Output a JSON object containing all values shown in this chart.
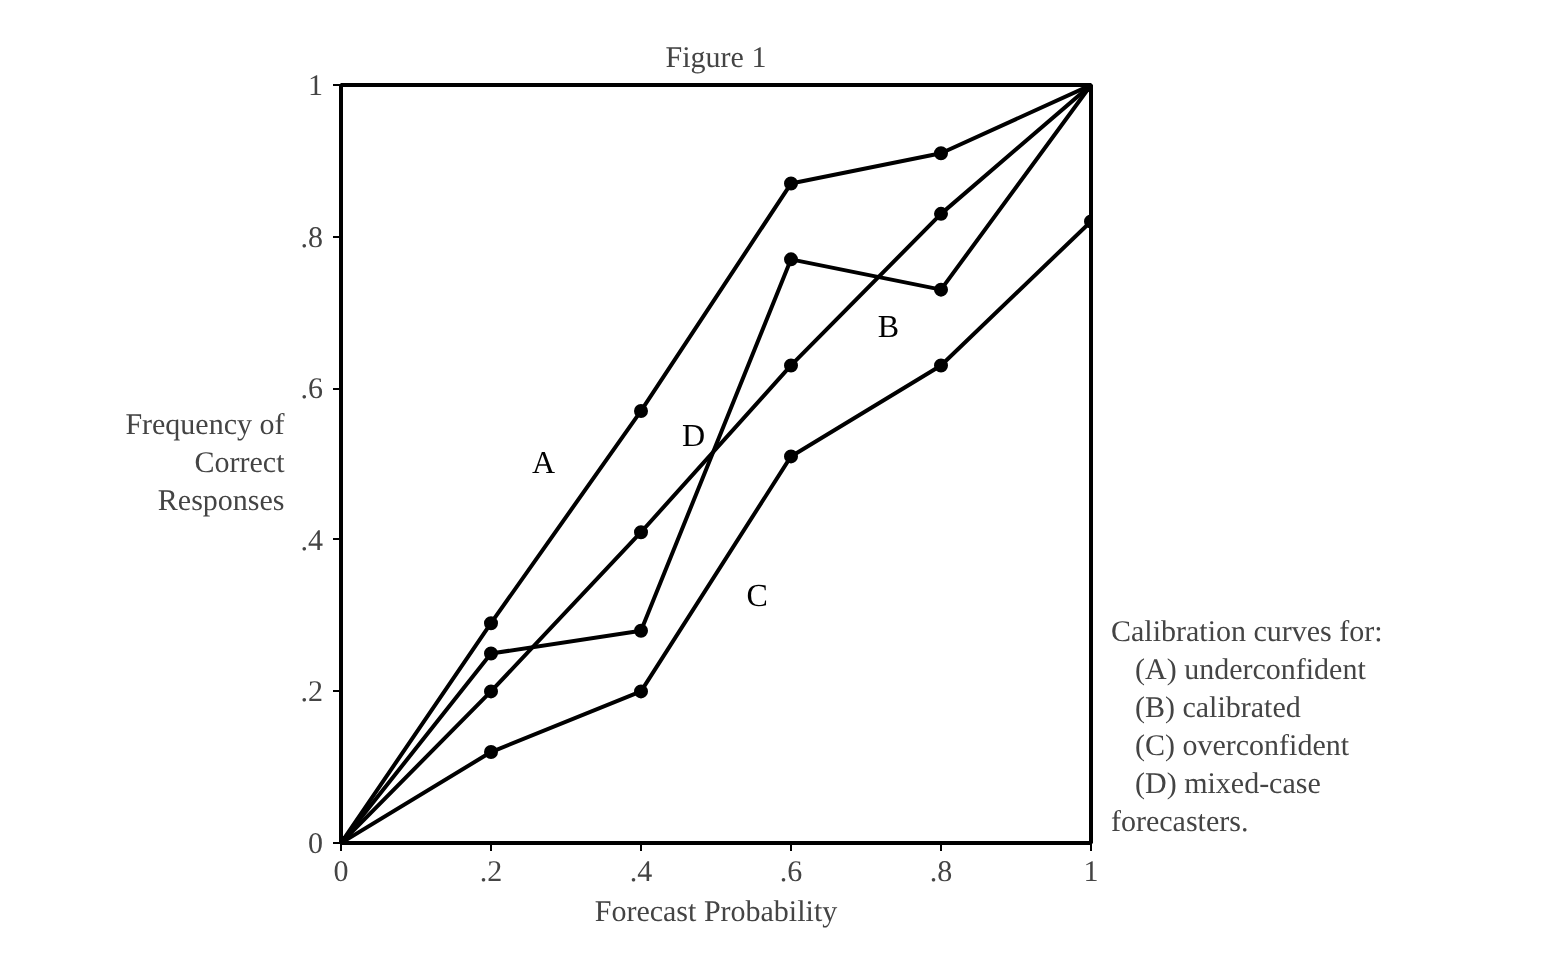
{
  "chart_data": {
    "type": "line",
    "title": "Figure 1",
    "xlabel": "Forecast Probability",
    "ylabel": "Frequency of Correct Responses",
    "x": [
      0,
      0.2,
      0.4,
      0.6,
      0.8,
      1
    ],
    "series": [
      {
        "name": "A",
        "color": "#000000",
        "values": [
          0,
          0.29,
          0.57,
          0.87,
          0.91,
          1
        ]
      },
      {
        "name": "B",
        "color": "#000000",
        "values": [
          0,
          0.2,
          0.41,
          0.63,
          0.83,
          1
        ]
      },
      {
        "name": "C",
        "color": "#000000",
        "values": [
          0,
          0.12,
          0.2,
          0.51,
          0.63,
          0.82
        ]
      },
      {
        "name": "D",
        "color": "#000000",
        "values": [
          0,
          0.25,
          0.28,
          0.77,
          0.73,
          1
        ]
      }
    ],
    "xlim": [
      0,
      1
    ],
    "ylim": [
      0,
      1
    ],
    "xticks": [
      0,
      {
        "value": 0.2,
        "label": ".2"
      },
      {
        "value": 0.4,
        "label": ".4"
      },
      {
        "value": 0.6,
        "label": ".6"
      },
      {
        "value": 0.8,
        "label": ".8"
      },
      1
    ],
    "yticks": [
      0,
      {
        "value": 0.2,
        "label": ".2"
      },
      {
        "value": 0.4,
        "label": ".4"
      },
      {
        "value": 0.6,
        "label": ".6"
      },
      {
        "value": 0.8,
        "label": ".8"
      },
      1
    ],
    "annotations": [
      "Calibration curves for:\n(A) underconfident\n(B) calibrated\n(C) overconfident\n(D) mixed-case\nforecasters."
    ],
    "grid": false,
    "marker": "circle",
    "line_style": "solid"
  }
}
